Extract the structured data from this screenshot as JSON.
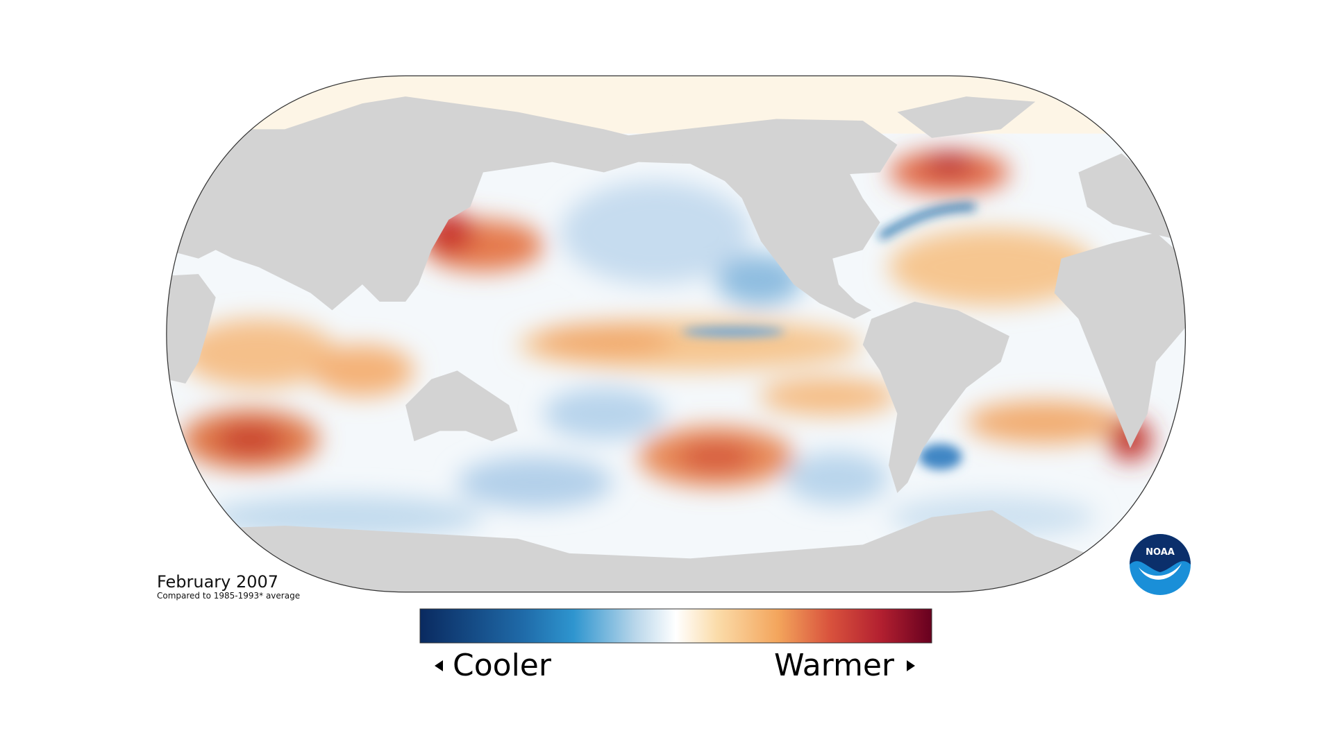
{
  "title": "February 2007",
  "subtitle": "Compared to 1985-1993* average",
  "legend": {
    "low_label": "Cooler",
    "high_label": "Warmer"
  },
  "logo": "NOAA"
}
